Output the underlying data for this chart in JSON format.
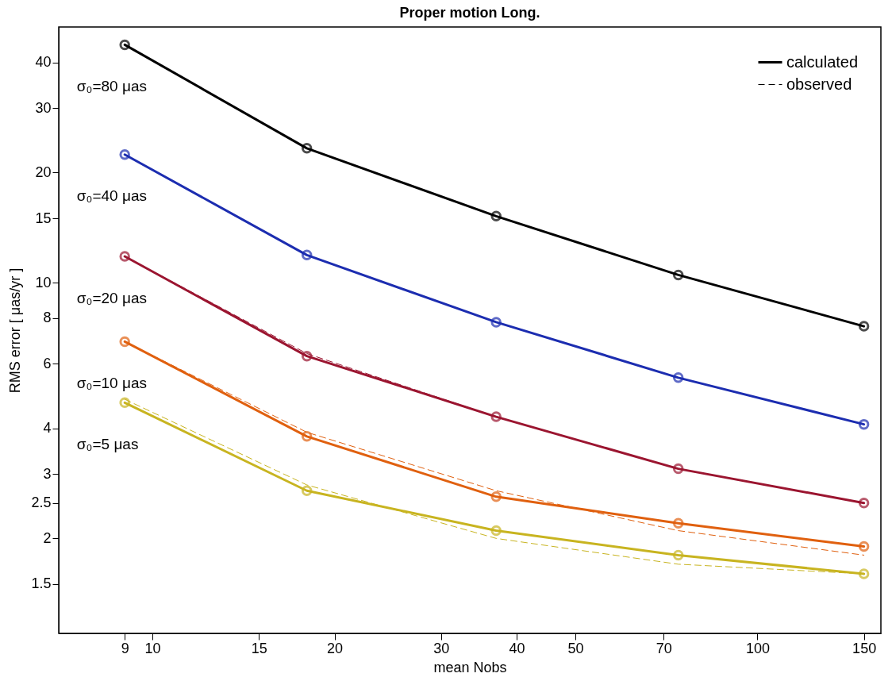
{
  "chart_data": {
    "type": "line",
    "title": "Proper motion Long.",
    "xlabel": "mean Nobs",
    "ylabel": "RMS error   [ μas/yr ]",
    "log": "xy",
    "xlim": [
      7,
      160
    ],
    "ylim": [
      1.1,
      50
    ],
    "xticks": [
      9,
      10,
      15,
      20,
      30,
      40,
      50,
      70,
      100,
      150
    ],
    "yticks": [
      1.5,
      2,
      2.5,
      3,
      4,
      6,
      8,
      10,
      15,
      20,
      30,
      40
    ],
    "x": [
      9,
      18,
      37,
      74,
      150
    ],
    "marker": "circle",
    "legend": "top right",
    "grid": false,
    "series": [
      {
        "name": "calculated",
        "color": "#000000",
        "line_style": "solid",
        "values": [
          44.7,
          23.3,
          15.2,
          10.5,
          7.6
        ]
      },
      {
        "color": "#1c2db0",
        "line_style": "solid",
        "values": [
          22.4,
          11.9,
          7.8,
          5.5,
          4.1
        ]
      },
      {
        "color": "#9b1530",
        "line_style": "solid",
        "values": [
          11.8,
          6.3,
          4.3,
          3.1,
          2.5
        ]
      },
      {
        "color": "#e0600f",
        "line_style": "solid",
        "values": [
          6.9,
          3.8,
          2.6,
          2.2,
          1.9
        ]
      },
      {
        "color": "#c8b420",
        "line_style": "solid",
        "values": [
          4.7,
          2.7,
          2.1,
          1.8,
          1.6
        ]
      },
      {
        "name": "observed",
        "color": "#000000",
        "line_style": "dashed",
        "marker": "none",
        "values": [
          null,
          null,
          null,
          null,
          null
        ]
      },
      {
        "color": "#9b1530",
        "line_style": "dashed",
        "marker": "none",
        "values": [
          11.8,
          6.4,
          4.3,
          3.1,
          2.5
        ]
      },
      {
        "color": "#e0600f",
        "line_style": "dashed",
        "marker": "none",
        "values": [
          6.9,
          3.9,
          2.7,
          2.1,
          1.8
        ]
      },
      {
        "color": "#c8b420",
        "line_style": "dashed",
        "marker": "none",
        "values": [
          4.8,
          2.8,
          2.0,
          1.7,
          1.6
        ]
      }
    ],
    "annotations": [
      "σ₀=80 μas",
      "σ₀=40 μas",
      "σ₀=20 μas",
      "σ₀=10 μas",
      "σ₀=5 μas"
    ]
  }
}
